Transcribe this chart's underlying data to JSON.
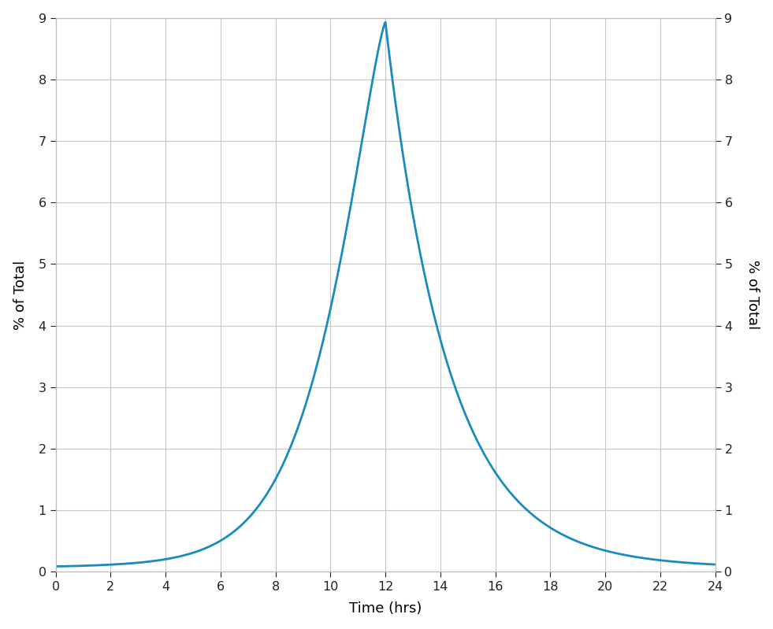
{
  "xlabel": "Time (hrs)",
  "ylabel_left": "% of Total",
  "ylabel_right": "% of Total",
  "line_color": "#1a8bbf",
  "line_width": 2.0,
  "background_color": "#ffffff",
  "grid_color": "#c8c8c8",
  "xlim": [
    0,
    24
  ],
  "ylim": [
    0,
    9
  ],
  "xticks": [
    0,
    2,
    4,
    6,
    8,
    10,
    12,
    14,
    16,
    18,
    20,
    22,
    24
  ],
  "yticks": [
    0,
    1,
    2,
    3,
    4,
    5,
    6,
    7,
    8,
    9
  ],
  "peak_time": 12.0,
  "peak_value": 8.44,
  "rise_sharpness": 5.5,
  "fall_sharpness": 3.8,
  "base_level": 0.08
}
